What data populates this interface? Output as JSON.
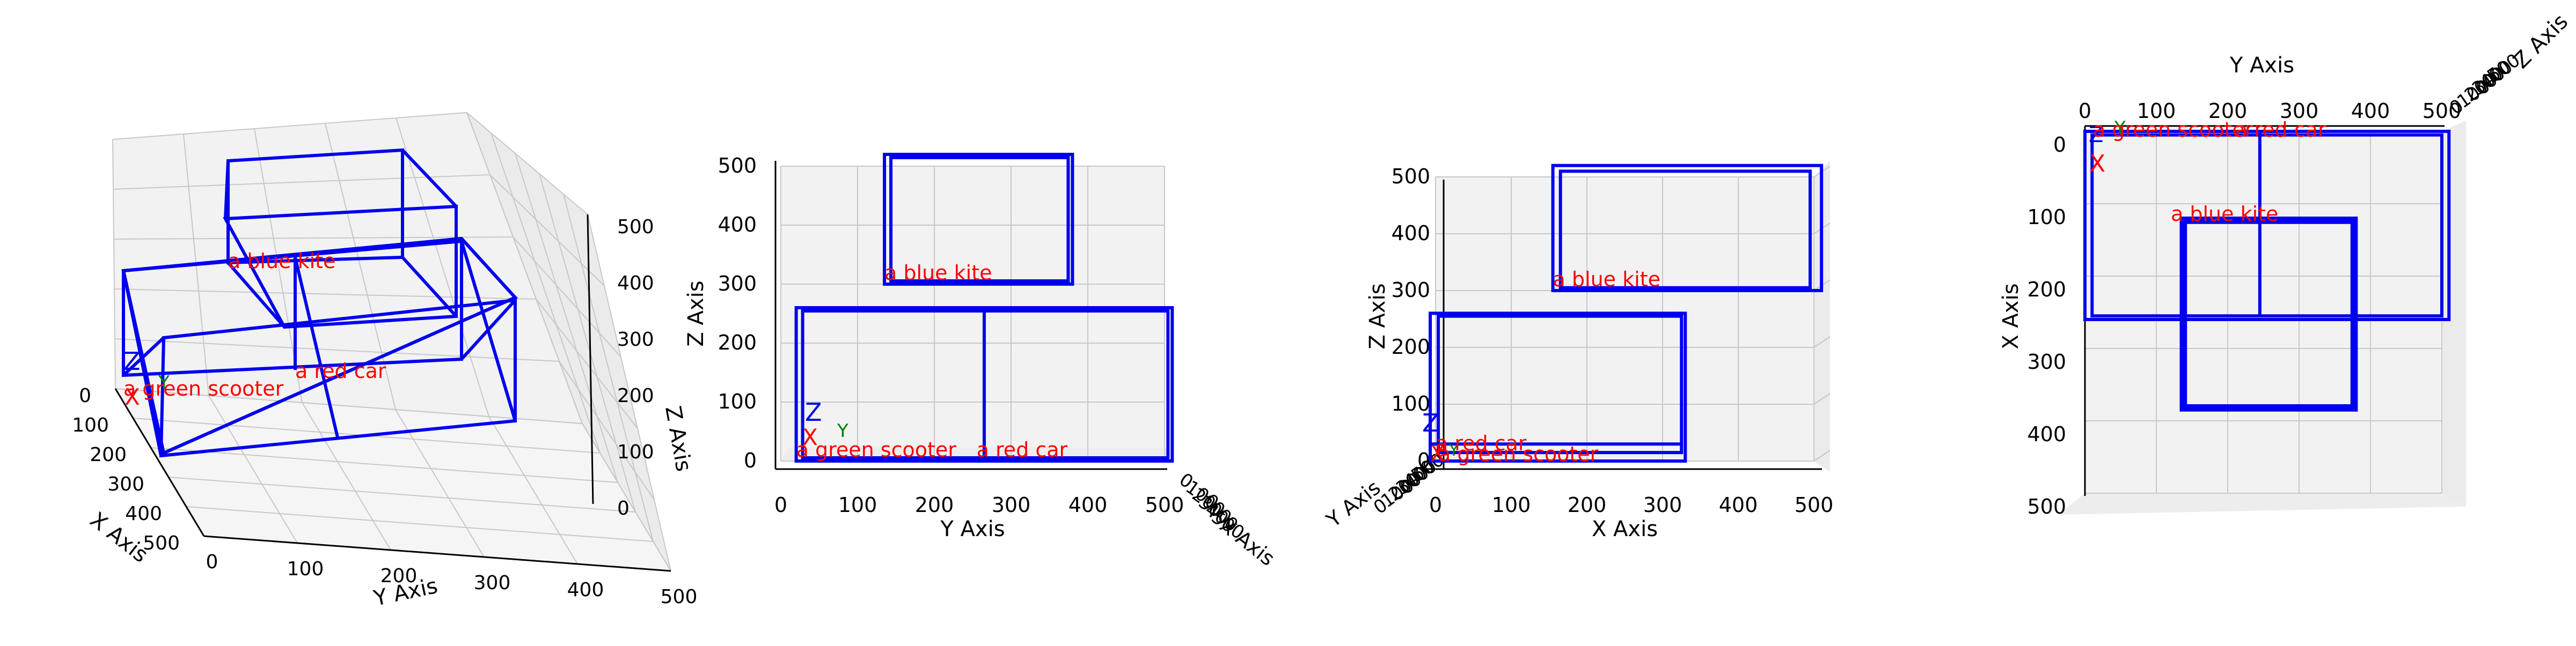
{
  "chart_data": {
    "type": "3d-box-scene",
    "views": [
      {
        "name": "perspective",
        "axis_labels": {
          "x": "X Axis",
          "y": "Y Axis",
          "z": "Z Axis"
        },
        "x_ticks": [
          "0",
          "100",
          "200",
          "300",
          "400",
          "500"
        ],
        "y_ticks": [
          "0",
          "100",
          "200",
          "300",
          "400",
          "500"
        ],
        "z_ticks": [
          "0",
          "100",
          "200",
          "300",
          "400",
          "500"
        ],
        "xlim": [
          0,
          500
        ],
        "ylim": [
          0,
          500
        ],
        "zlim": [
          0,
          500
        ],
        "grid": true
      },
      {
        "name": "front",
        "axis_labels": {
          "x": "X Axis",
          "y": "Y Axis",
          "z": "Z Axis"
        },
        "y_ticks": [
          "0",
          "100",
          "200",
          "300",
          "400",
          "500"
        ],
        "z_ticks": [
          "0",
          "100",
          "200",
          "300",
          "400",
          "500"
        ],
        "x_ticks_compressed": [
          "0",
          "100",
          "200",
          "300",
          "400",
          "500"
        ],
        "grid": true
      },
      {
        "name": "side",
        "axis_labels": {
          "x": "X Axis",
          "y": "Y Axis",
          "z": "Z Axis"
        },
        "x_ticks": [
          "0",
          "100",
          "200",
          "300",
          "400",
          "500"
        ],
        "z_ticks": [
          "0",
          "100",
          "200",
          "300",
          "400",
          "500"
        ],
        "y_ticks_compressed": [
          "0",
          "100",
          "200",
          "300",
          "400",
          "500"
        ],
        "grid": true
      },
      {
        "name": "top",
        "axis_labels": {
          "x": "X Axis",
          "y": "Y Axis",
          "z": "Z Axis"
        },
        "y_ticks": [
          "0",
          "100",
          "200",
          "300",
          "400",
          "500"
        ],
        "x_ticks": [
          "0",
          "100",
          "200",
          "300",
          "400",
          "500"
        ],
        "z_ticks_compressed": [
          "0",
          "100",
          "200",
          "300",
          "400",
          "500"
        ],
        "grid": true
      }
    ],
    "objects": [
      {
        "label": "a blue kite",
        "x": [
          0,
          260
        ],
        "y": [
          135,
          380
        ],
        "z": [
          300,
          520
        ]
      },
      {
        "label": "a red car",
        "x": [
          0,
          260
        ],
        "y": [
          20,
          510
        ],
        "z": [
          0,
          260
        ]
      },
      {
        "label": "a green scooter",
        "x": [
          0,
          15
        ],
        "y": [
          20,
          45
        ],
        "z": [
          0,
          15
        ]
      }
    ],
    "origin_markers": {
      "x": "X",
      "y": "Y",
      "z": "Z"
    },
    "colors": {
      "box": "#0000ee",
      "label": "#ff0000",
      "x_marker": "#ff0000",
      "y_marker": "#008000",
      "z_marker": "#0000ee",
      "pane_back": "#f2f2f2",
      "pane_side": "#ebebeb",
      "grid": "#c8c8c8"
    }
  }
}
